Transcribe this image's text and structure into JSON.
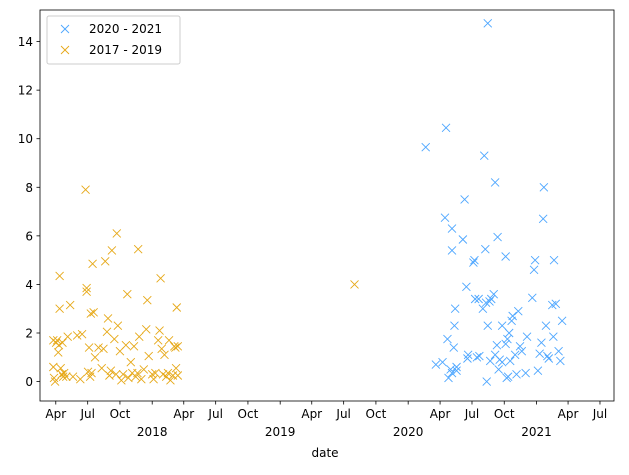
{
  "chart_data": {
    "type": "scatter",
    "marker": "x",
    "xlabel": "date",
    "ylabel": "",
    "ylim": [
      -0.8,
      15.3
    ],
    "xlim": [
      "2017-02-15",
      "2021-08-10"
    ],
    "grid": false,
    "legend_position": "top-left",
    "y_ticks": [
      0,
      2,
      4,
      6,
      8,
      10,
      12,
      14
    ],
    "x_ticks": [
      {
        "date": "2017-04-01",
        "label": "Apr"
      },
      {
        "date": "2017-07-01",
        "label": "Jul"
      },
      {
        "date": "2017-10-01",
        "label": "Oct"
      },
      {
        "date": "2018-01-01",
        "label": ""
      },
      {
        "date": "2018-04-01",
        "label": "Apr"
      },
      {
        "date": "2018-07-01",
        "label": "Jul"
      },
      {
        "date": "2018-10-01",
        "label": "Oct"
      },
      {
        "date": "2019-01-01",
        "label": ""
      },
      {
        "date": "2019-04-01",
        "label": "Apr"
      },
      {
        "date": "2019-07-01",
        "label": "Jul"
      },
      {
        "date": "2019-10-01",
        "label": "Oct"
      },
      {
        "date": "2020-01-01",
        "label": ""
      },
      {
        "date": "2020-04-01",
        "label": "Apr"
      },
      {
        "date": "2020-07-01",
        "label": "Jul"
      },
      {
        "date": "2020-10-01",
        "label": "Oct"
      },
      {
        "date": "2021-01-01",
        "label": ""
      },
      {
        "date": "2021-04-01",
        "label": "Apr"
      },
      {
        "date": "2021-07-01",
        "label": "Jul"
      }
    ],
    "year_labels": [
      {
        "date": "2018-01-01",
        "label": "2018"
      },
      {
        "date": "2019-01-01",
        "label": "2019"
      },
      {
        "date": "2020-01-01",
        "label": "2020"
      },
      {
        "date": "2021-01-01",
        "label": "2021"
      }
    ],
    "series": [
      {
        "name": "2020 - 2021",
        "color": "#4da6ff",
        "points": [
          [
            "2020-02-20",
            9.65
          ],
          [
            "2020-03-20",
            0.7
          ],
          [
            "2020-04-08",
            0.8
          ],
          [
            "2020-04-18",
            10.45
          ],
          [
            "2020-04-15",
            6.75
          ],
          [
            "2020-04-22",
            1.75
          ],
          [
            "2020-04-25",
            0.15
          ],
          [
            "2020-05-01",
            0.5
          ],
          [
            "2020-05-05",
            0.35
          ],
          [
            "2020-05-05",
            6.3
          ],
          [
            "2020-05-05",
            5.4
          ],
          [
            "2020-05-10",
            1.4
          ],
          [
            "2020-05-12",
            2.3
          ],
          [
            "2020-05-14",
            3.0
          ],
          [
            "2020-05-18",
            0.6
          ],
          [
            "2020-05-18",
            0.45
          ],
          [
            "2020-06-05",
            5.85
          ],
          [
            "2020-06-10",
            7.5
          ],
          [
            "2020-06-15",
            3.9
          ],
          [
            "2020-06-18",
            0.95
          ],
          [
            "2020-06-20",
            1.1
          ],
          [
            "2020-07-05",
            4.9
          ],
          [
            "2020-07-08",
            5.0
          ],
          [
            "2020-07-10",
            3.4
          ],
          [
            "2020-07-15",
            1.0
          ],
          [
            "2020-07-20",
            3.4
          ],
          [
            "2020-07-22",
            1.05
          ],
          [
            "2020-08-01",
            3.0
          ],
          [
            "2020-08-05",
            9.3
          ],
          [
            "2020-08-08",
            5.45
          ],
          [
            "2020-08-10",
            3.25
          ],
          [
            "2020-08-12",
            0.0
          ],
          [
            "2020-08-15",
            2.3
          ],
          [
            "2020-08-15",
            14.75
          ],
          [
            "2020-08-20",
            3.3
          ],
          [
            "2020-08-22",
            0.85
          ],
          [
            "2020-08-25",
            3.4
          ],
          [
            "2020-09-01",
            3.6
          ],
          [
            "2020-09-05",
            8.2
          ],
          [
            "2020-09-05",
            1.1
          ],
          [
            "2020-09-10",
            1.5
          ],
          [
            "2020-09-12",
            5.95
          ],
          [
            "2020-09-15",
            0.5
          ],
          [
            "2020-09-18",
            0.9
          ],
          [
            "2020-09-25",
            0.8
          ],
          [
            "2020-09-25",
            2.3
          ],
          [
            "2020-10-05",
            5.15
          ],
          [
            "2020-10-05",
            1.55
          ],
          [
            "2020-10-08",
            0.15
          ],
          [
            "2020-10-10",
            1.75
          ],
          [
            "2020-10-12",
            0.2
          ],
          [
            "2020-10-15",
            2.0
          ],
          [
            "2020-10-18",
            0.85
          ],
          [
            "2020-10-22",
            2.5
          ],
          [
            "2020-10-25",
            2.7
          ],
          [
            "2020-11-01",
            1.1
          ],
          [
            "2020-11-05",
            0.3
          ],
          [
            "2020-11-10",
            2.9
          ],
          [
            "2020-11-15",
            1.45
          ],
          [
            "2020-11-20",
            1.25
          ],
          [
            "2020-12-01",
            0.35
          ],
          [
            "2020-12-05",
            1.85
          ],
          [
            "2020-12-20",
            3.45
          ],
          [
            "2020-12-25",
            4.6
          ],
          [
            "2020-12-28",
            5.0
          ],
          [
            "2021-01-05",
            0.45
          ],
          [
            "2021-01-10",
            1.15
          ],
          [
            "2021-01-15",
            1.6
          ],
          [
            "2021-01-20",
            6.7
          ],
          [
            "2021-01-22",
            8.0
          ],
          [
            "2021-01-28",
            2.3
          ],
          [
            "2021-02-01",
            1.05
          ],
          [
            "2021-02-05",
            0.95
          ],
          [
            "2021-02-15",
            3.15
          ],
          [
            "2021-02-18",
            1.85
          ],
          [
            "2021-02-20",
            5.0
          ],
          [
            "2021-02-25",
            3.2
          ],
          [
            "2021-03-05",
            1.25
          ],
          [
            "2021-03-10",
            0.85
          ],
          [
            "2021-03-15",
            2.5
          ]
        ]
      },
      {
        "name": "2017 - 2019",
        "color": "#e6a817",
        "points": [
          [
            "2017-03-25",
            1.7
          ],
          [
            "2017-03-25",
            0.6
          ],
          [
            "2017-03-27",
            0.15
          ],
          [
            "2017-03-30",
            0.0
          ],
          [
            "2017-04-02",
            1.6
          ],
          [
            "2017-04-05",
            1.7
          ],
          [
            "2017-04-08",
            1.2
          ],
          [
            "2017-04-10",
            1.5
          ],
          [
            "2017-04-12",
            4.35
          ],
          [
            "2017-04-12",
            3.0
          ],
          [
            "2017-04-15",
            0.55
          ],
          [
            "2017-04-18",
            0.3
          ],
          [
            "2017-04-20",
            1.6
          ],
          [
            "2017-04-22",
            0.2
          ],
          [
            "2017-04-25",
            0.35
          ],
          [
            "2017-05-01",
            0.2
          ],
          [
            "2017-05-05",
            1.85
          ],
          [
            "2017-05-12",
            3.15
          ],
          [
            "2017-05-20",
            0.2
          ],
          [
            "2017-06-01",
            1.9
          ],
          [
            "2017-06-10",
            0.1
          ],
          [
            "2017-06-15",
            1.95
          ],
          [
            "2017-06-25",
            7.9
          ],
          [
            "2017-06-28",
            3.7
          ],
          [
            "2017-06-28",
            3.85
          ],
          [
            "2017-07-02",
            0.4
          ],
          [
            "2017-07-05",
            1.4
          ],
          [
            "2017-07-08",
            0.2
          ],
          [
            "2017-07-10",
            2.8
          ],
          [
            "2017-07-12",
            0.35
          ],
          [
            "2017-07-15",
            4.85
          ],
          [
            "2017-07-18",
            2.85
          ],
          [
            "2017-07-22",
            1.0
          ],
          [
            "2017-08-01",
            1.4
          ],
          [
            "2017-08-10",
            0.55
          ],
          [
            "2017-08-15",
            1.35
          ],
          [
            "2017-08-20",
            4.95
          ],
          [
            "2017-08-25",
            2.05
          ],
          [
            "2017-08-28",
            2.6
          ],
          [
            "2017-09-01",
            0.25
          ],
          [
            "2017-09-05",
            0.45
          ],
          [
            "2017-09-08",
            5.4
          ],
          [
            "2017-09-15",
            1.75
          ],
          [
            "2017-09-20",
            0.3
          ],
          [
            "2017-09-22",
            6.1
          ],
          [
            "2017-09-25",
            2.3
          ],
          [
            "2017-10-01",
            1.25
          ],
          [
            "2017-10-05",
            0.05
          ],
          [
            "2017-10-10",
            0.3
          ],
          [
            "2017-10-18",
            1.5
          ],
          [
            "2017-10-22",
            3.6
          ],
          [
            "2017-10-25",
            0.15
          ],
          [
            "2017-11-01",
            0.8
          ],
          [
            "2017-11-05",
            0.35
          ],
          [
            "2017-11-10",
            1.45
          ],
          [
            "2017-11-15",
            0.2
          ],
          [
            "2017-11-20",
            0.35
          ],
          [
            "2017-11-22",
            5.45
          ],
          [
            "2017-11-25",
            1.85
          ],
          [
            "2017-12-01",
            0.1
          ],
          [
            "2017-12-08",
            0.5
          ],
          [
            "2017-12-15",
            2.15
          ],
          [
            "2017-12-18",
            3.35
          ],
          [
            "2017-12-22",
            1.05
          ],
          [
            "2018-01-01",
            0.3
          ],
          [
            "2018-01-05",
            0.1
          ],
          [
            "2018-01-10",
            0.35
          ],
          [
            "2018-01-18",
            1.7
          ],
          [
            "2018-01-22",
            2.1
          ],
          [
            "2018-01-25",
            4.25
          ],
          [
            "2018-01-28",
            1.35
          ],
          [
            "2018-02-01",
            0.3
          ],
          [
            "2018-02-05",
            1.1
          ],
          [
            "2018-02-10",
            0.2
          ],
          [
            "2018-02-15",
            0.35
          ],
          [
            "2018-02-18",
            1.7
          ],
          [
            "2018-02-22",
            0.05
          ],
          [
            "2018-03-01",
            0.25
          ],
          [
            "2018-03-05",
            1.45
          ],
          [
            "2018-03-08",
            1.4
          ],
          [
            "2018-03-10",
            0.55
          ],
          [
            "2018-03-12",
            3.05
          ],
          [
            "2018-03-15",
            1.45
          ],
          [
            "2018-03-15",
            0.25
          ],
          [
            "2019-08-01",
            4.0
          ]
        ]
      }
    ]
  }
}
